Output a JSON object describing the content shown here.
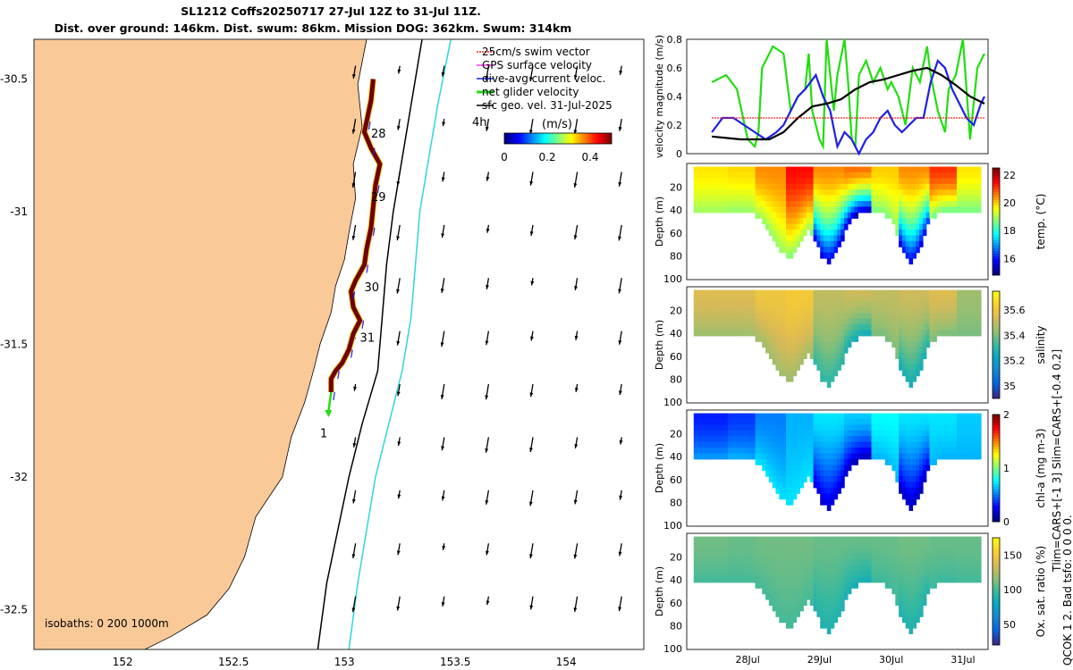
{
  "header": {
    "title_line1": "SL1212 Coffs20250717 27-Jul 12Z to 31-Jul 11Z.",
    "title_line2": "Dist. over ground: 146km. Dist. swum: 86km. Mission DOG: 362km. Swum: 314km"
  },
  "colors": {
    "land": "#f9c998",
    "ocean": "#ffffff",
    "isobath200": "#000000",
    "isobath1000": "#2ed6d6",
    "track": "#6e0000",
    "dive_avg": "#1f1fe6",
    "net_glider": "#22dd11",
    "sfc_geo": "#000000",
    "swim_vector": "#ee2222",
    "gps_surface": "#ff33ff"
  },
  "map": {
    "xticks": [
      "152",
      "152.5",
      "153",
      "153.5",
      "154"
    ],
    "yticks": [
      "-30.5",
      "-31",
      "-31.5",
      "-32",
      "-32.5"
    ],
    "xlim": [
      151.6,
      154.35
    ],
    "ylim": [
      -32.65,
      -30.35
    ],
    "isobath_label": "isobaths: 0   200  1000m",
    "day_labels": [
      {
        "text": "28",
        "lon": 153.12,
        "lat": -30.72
      },
      {
        "text": "29",
        "lon": 153.12,
        "lat": -30.96
      },
      {
        "text": "30",
        "lon": 153.09,
        "lat": -31.3
      },
      {
        "text": "31",
        "lon": 153.07,
        "lat": -31.49
      },
      {
        "text": "1",
        "lon": 152.89,
        "lat": -31.85
      }
    ],
    "label_4h": "4h",
    "legend": [
      {
        "label": "25cm/s swim vector",
        "color": "#ee2222"
      },
      {
        "label": "GPS surface velocity",
        "color": "#ff33ff"
      },
      {
        "label": "dive-avg current veloc.",
        "color": "#1f1fe6"
      },
      {
        "label": "net glider velocity",
        "color": "#22dd11"
      },
      {
        "label": "sfc geo. vel. 31-Jul-2025",
        "color": "#000000"
      }
    ],
    "colorbar": {
      "label": "(m/s)",
      "ticks": [
        "0",
        "0.2",
        "0.4"
      ],
      "range": [
        0,
        0.5
      ]
    },
    "track": [
      [
        153.13,
        -30.5
      ],
      [
        153.12,
        -30.58
      ],
      [
        153.1,
        -30.66
      ],
      [
        153.09,
        -30.7
      ],
      [
        153.12,
        -30.76
      ],
      [
        153.16,
        -30.82
      ],
      [
        153.14,
        -30.9
      ],
      [
        153.13,
        -30.98
      ],
      [
        153.12,
        -31.06
      ],
      [
        153.1,
        -31.14
      ],
      [
        153.09,
        -31.2
      ],
      [
        153.05,
        -31.26
      ],
      [
        153.03,
        -31.3
      ],
      [
        153.04,
        -31.36
      ],
      [
        153.07,
        -31.41
      ],
      [
        153.04,
        -31.46
      ],
      [
        153.02,
        -31.52
      ],
      [
        152.99,
        -31.57
      ],
      [
        152.96,
        -31.6
      ],
      [
        152.94,
        -31.63
      ],
      [
        152.94,
        -31.68
      ]
    ]
  },
  "chart_data": [
    {
      "type": "line",
      "title": "",
      "ylabel": "velocity magnitude (m/s)",
      "ylim": [
        0,
        0.8
      ],
      "yticks": [
        "0",
        "0.2",
        "0.4",
        "0.6",
        "0.8"
      ],
      "series": [
        {
          "name": "net glider velocity",
          "color": "#22dd11",
          "x": [
            0,
            0.2,
            0.35,
            0.5,
            0.6,
            0.65,
            0.7,
            0.85,
            1.0,
            1.1,
            1.2,
            1.3,
            1.35,
            1.4,
            1.5,
            1.55,
            1.6,
            1.7,
            1.75,
            1.85,
            1.9,
            1.95,
            2.0,
            2.05,
            2.15,
            2.25,
            2.35,
            2.45,
            2.5,
            2.6,
            2.7,
            2.8,
            2.9,
            3.0,
            3.05,
            3.15,
            3.25,
            3.3,
            3.4,
            3.5,
            3.6,
            3.7,
            3.75,
            3.8
          ],
          "values": [
            0.5,
            0.55,
            0.45,
            0.1,
            0.05,
            0.15,
            0.6,
            0.75,
            0.7,
            0.3,
            0.4,
            0.45,
            0.7,
            0.3,
            0.1,
            0.05,
            0.8,
            0.3,
            0.55,
            0.8,
            0.5,
            0.1,
            0.05,
            0.55,
            0.65,
            0.5,
            0.6,
            0.45,
            0.5,
            0.4,
            0.2,
            0.6,
            0.5,
            0.75,
            0.55,
            0.3,
            0.15,
            0.45,
            0.55,
            0.8,
            0.1,
            0.6,
            0.65,
            0.7
          ]
        },
        {
          "name": "dive-avg current veloc.",
          "color": "#1f1fe6",
          "x": [
            0,
            0.15,
            0.3,
            0.45,
            0.6,
            0.75,
            0.9,
            1.0,
            1.1,
            1.2,
            1.3,
            1.45,
            1.55,
            1.65,
            1.75,
            1.85,
            1.95,
            2.05,
            2.15,
            2.25,
            2.35,
            2.45,
            2.55,
            2.65,
            2.75,
            2.85,
            2.95,
            3.05,
            3.15,
            3.25,
            3.35,
            3.45,
            3.55,
            3.65,
            3.75,
            3.8
          ],
          "values": [
            0.15,
            0.25,
            0.25,
            0.2,
            0.15,
            0.1,
            0.15,
            0.2,
            0.3,
            0.4,
            0.45,
            0.55,
            0.4,
            0.3,
            0.05,
            0.15,
            0.1,
            0.0,
            0.1,
            0.15,
            0.25,
            0.3,
            0.2,
            0.15,
            0.2,
            0.25,
            0.25,
            0.5,
            0.65,
            0.6,
            0.45,
            0.35,
            0.25,
            0.2,
            0.35,
            0.4
          ]
        },
        {
          "name": "sfc geo. vel.",
          "color": "#000000",
          "x": [
            0,
            0.4,
            0.8,
            1.0,
            1.2,
            1.4,
            1.6,
            1.8,
            2.0,
            2.2,
            2.4,
            2.6,
            2.8,
            3.0,
            3.2,
            3.4,
            3.6,
            3.8
          ],
          "values": [
            0.12,
            0.1,
            0.1,
            0.15,
            0.25,
            0.33,
            0.35,
            0.38,
            0.45,
            0.5,
            0.52,
            0.55,
            0.58,
            0.6,
            0.55,
            0.48,
            0.4,
            0.35
          ]
        },
        {
          "name": "25cm/s swim vector",
          "color": "#ee2222",
          "x": [
            0,
            3.8
          ],
          "values": [
            0.25,
            0.25
          ]
        }
      ]
    },
    {
      "type": "heatmap",
      "variable": "temperature",
      "ylabel": "Depth (m)",
      "colorbar_label": "temp. (°C)",
      "colorbar_ticks": [
        "16",
        "18",
        "20",
        "22"
      ],
      "clim": [
        14.8,
        22.5
      ],
      "yticks": [
        "20",
        "40",
        "60",
        "80",
        "100"
      ],
      "x": [
        0,
        0.4,
        0.8,
        1.2,
        1.6,
        2.0,
        2.4,
        2.8,
        3.2,
        3.6
      ],
      "surface_value": [
        19.8,
        19.9,
        20.5,
        21.5,
        20.5,
        20.7,
        20.0,
        20.5,
        21.2,
        19.8
      ],
      "deep_value": [
        18.9,
        18.8,
        18.8,
        18.7,
        15.5,
        15.2,
        18.6,
        15.6,
        18.5,
        18.6
      ]
    },
    {
      "type": "heatmap",
      "variable": "salinity",
      "ylabel": "Depth (m)",
      "colorbar_label": "salinity",
      "colorbar_ticks": [
        "35",
        "35.2",
        "35.4",
        "35.6"
      ],
      "clim": [
        34.9,
        35.75
      ],
      "yticks": [
        "20",
        "40",
        "60",
        "80",
        "100"
      ],
      "x": [
        0,
        0.4,
        0.8,
        1.2,
        1.6,
        2.0,
        2.4,
        2.8,
        3.2,
        3.6
      ],
      "surface_value": [
        35.55,
        35.55,
        35.6,
        35.62,
        35.5,
        35.52,
        35.5,
        35.52,
        35.55,
        35.45
      ],
      "deep_value": [
        35.45,
        35.45,
        35.45,
        35.45,
        35.3,
        35.25,
        35.4,
        35.25,
        35.4,
        35.4
      ]
    },
    {
      "type": "heatmap",
      "variable": "chlorophyll-a",
      "ylabel": "Depth (m)",
      "colorbar_label": "chl-a (mg m-3)",
      "colorbar_ticks": [
        "0",
        "1",
        "2"
      ],
      "clim": [
        0,
        2
      ],
      "yticks": [
        "20",
        "40",
        "60",
        "80",
        "100"
      ],
      "x": [
        0,
        0.4,
        0.8,
        1.2,
        1.6,
        2.0,
        2.4,
        2.8,
        3.2,
        3.6
      ],
      "surface_value": [
        0.3,
        0.35,
        0.5,
        0.6,
        0.7,
        0.65,
        0.75,
        0.7,
        0.7,
        0.65
      ],
      "deep_value": [
        0.55,
        0.6,
        0.7,
        0.7,
        0.15,
        0.1,
        0.6,
        0.1,
        0.6,
        0.6
      ]
    },
    {
      "type": "heatmap",
      "variable": "oxygen saturation",
      "ylabel": "Depth (m)",
      "colorbar_label": "Ox. sat. ratio (%)",
      "colorbar_ticks": [
        "50",
        "100",
        "150"
      ],
      "clim": [
        20,
        175
      ],
      "yticks": [
        "20",
        "40",
        "60",
        "80",
        "100"
      ],
      "x": [
        0,
        0.4,
        0.8,
        1.2,
        1.6,
        2.0,
        2.4,
        2.8,
        3.2,
        3.6
      ],
      "surface_value": [
        110,
        108,
        110,
        110,
        108,
        108,
        108,
        110,
        108,
        108
      ],
      "deep_value": [
        100,
        100,
        100,
        100,
        88,
        85,
        98,
        88,
        98,
        100
      ],
      "time_ticks": [
        "28Jul",
        "29Jul",
        "30Jul",
        "31Jul"
      ]
    }
  ],
  "side_note": {
    "line1": "Tlim=CARS+[-1 3] Slim=CARS+[-0.4 0.2]",
    "line2": "QCOK 1  2. Bad tsfo: 0  0  0  0."
  }
}
